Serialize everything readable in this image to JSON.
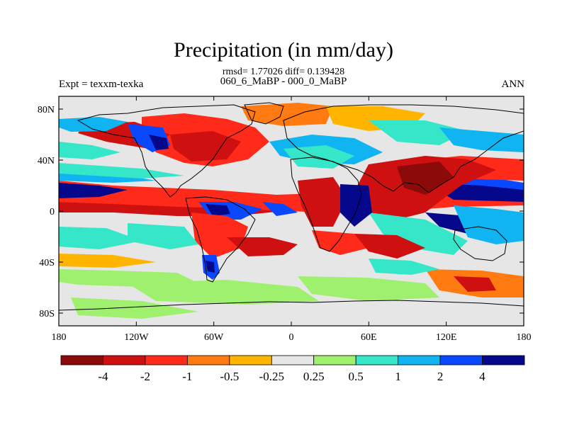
{
  "header": {
    "title": "Precipitation (in mm/day)",
    "stats_line": "rmsd= 1.77026 diff= 0.139428",
    "case_line": "060_6_MaBP - 000_0_MaBP",
    "expt_label": "Expt = texxm-texka",
    "season_label": "ANN"
  },
  "map": {
    "projection": "cylindrical-equidistant",
    "lon_range": [
      -180,
      180
    ],
    "lat_range": [
      -90,
      90
    ],
    "x_tick_labels": [
      "180",
      "120W",
      "60W",
      "0",
      "60E",
      "120E",
      "180"
    ],
    "y_tick_labels": [
      "80N",
      "40N",
      "0",
      "40S",
      "80S"
    ],
    "ocean_fill": "#e6e6e6"
  },
  "colorbar": {
    "boundaries": [
      "-4",
      "-2",
      "-1",
      "-0.5",
      "-0.25",
      "0.25",
      "0.5",
      "1",
      "2",
      "4"
    ],
    "colors": [
      "#8b0a0a",
      "#cf1010",
      "#ff2a1a",
      "#ff7a10",
      "#ffb400",
      "#e6e6e6",
      "#9ff06e",
      "#35e7c8",
      "#10b4f0",
      "#0a48ff",
      "#06088c"
    ]
  }
}
